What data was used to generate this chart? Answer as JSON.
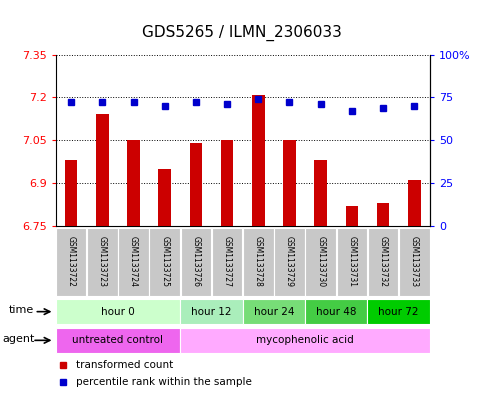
{
  "title": "GDS5265 / ILMN_2306033",
  "samples": [
    "GSM1133722",
    "GSM1133723",
    "GSM1133724",
    "GSM1133725",
    "GSM1133726",
    "GSM1133727",
    "GSM1133728",
    "GSM1133729",
    "GSM1133730",
    "GSM1133731",
    "GSM1133732",
    "GSM1133733"
  ],
  "transformed_counts": [
    6.98,
    7.14,
    7.05,
    6.95,
    7.04,
    7.05,
    7.21,
    7.05,
    6.98,
    6.82,
    6.83,
    6.91
  ],
  "percentile_ranks": [
    72,
    72,
    72,
    70,
    72,
    71,
    74,
    72,
    71,
    67,
    69,
    70
  ],
  "ylim_left": [
    6.75,
    7.35
  ],
  "ylim_right": [
    0,
    100
  ],
  "yticks_left": [
    6.75,
    6.9,
    7.05,
    7.2,
    7.35
  ],
  "yticks_right": [
    0,
    25,
    50,
    75,
    100
  ],
  "ytick_labels_left": [
    "6.75",
    "6.9",
    "7.05",
    "7.2",
    "7.35"
  ],
  "ytick_labels_right": [
    "0",
    "25",
    "50",
    "75",
    "100%"
  ],
  "bar_color": "#cc0000",
  "dot_color": "#0000cc",
  "bar_base": 6.75,
  "time_groups": [
    {
      "label": "hour 0",
      "samples": [
        0,
        1,
        2,
        3
      ],
      "color": "#ccffcc"
    },
    {
      "label": "hour 12",
      "samples": [
        4,
        5
      ],
      "color": "#aaeebb"
    },
    {
      "label": "hour 24",
      "samples": [
        6,
        7
      ],
      "color": "#77dd77"
    },
    {
      "label": "hour 48",
      "samples": [
        8,
        9
      ],
      "color": "#44cc44"
    },
    {
      "label": "hour 72",
      "samples": [
        10,
        11
      ],
      "color": "#00cc00"
    }
  ],
  "agent_groups": [
    {
      "label": "untreated control",
      "samples": [
        0,
        1,
        2,
        3
      ],
      "color": "#ee66ee"
    },
    {
      "label": "mycophenolic acid",
      "samples": [
        4,
        5,
        6,
        7,
        8,
        9,
        10,
        11
      ],
      "color": "#ffaaff"
    }
  ],
  "legend_items": [
    {
      "label": "transformed count",
      "color": "#cc0000"
    },
    {
      "label": "percentile rank within the sample",
      "color": "#0000cc"
    }
  ],
  "sample_bg_color": "#c8c8c8",
  "tick_fontsize": 8,
  "title_fontsize": 11
}
